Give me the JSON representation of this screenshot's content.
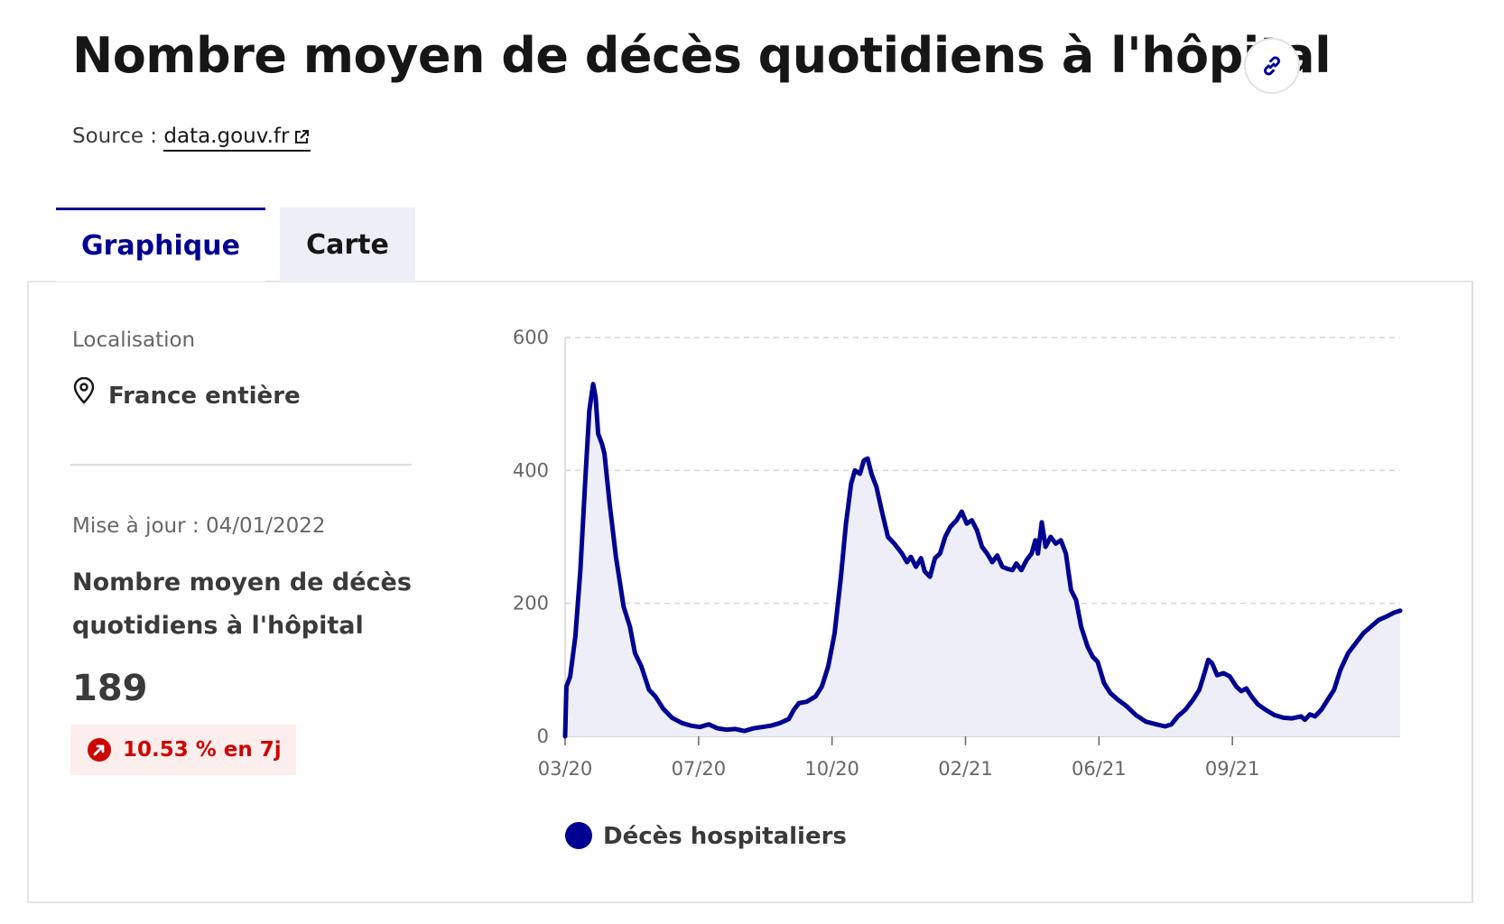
{
  "header": {
    "title": "Nombre moyen de décès quotidiens à l'hôpital",
    "link_icon": "link-icon",
    "source_label": "Source :",
    "source_link": "data.gouv.fr",
    "external_icon": "external-link-icon"
  },
  "tabs": [
    {
      "label": "Graphique",
      "active": true
    },
    {
      "label": "Carte",
      "active": false
    }
  ],
  "sidebar": {
    "location_label": "Localisation",
    "location_icon": "map-pin-icon",
    "location_value": "France entière",
    "update_text": "Mise à jour : 04/01/2022",
    "metric_title": "Nombre moyen de décès quotidiens à l'hôpital",
    "metric_value": "189",
    "trend_icon": "arrow-up-right-icon",
    "trend_text": "10.53 % en 7j"
  },
  "colors": {
    "accent": "#000091",
    "fill": "#eeeef8",
    "trend_bg": "#fdeeee",
    "trend_fg": "#ce0500"
  },
  "chart_data": {
    "type": "area",
    "x_start": "2020-03-18",
    "x_end": "2022-01-04",
    "ylim": [
      0,
      600
    ],
    "yticks": [
      "0",
      "200",
      "400",
      "600"
    ],
    "xticks": [
      {
        "label": "03/20",
        "date": "2020-03-18"
      },
      {
        "label": "07/20",
        "date": "2020-07-01"
      },
      {
        "label": "10/20",
        "date": "2020-10-14"
      },
      {
        "label": "02/21",
        "date": "2021-01-27"
      },
      {
        "label": "06/21",
        "date": "2021-05-12"
      },
      {
        "label": "09/21",
        "date": "2021-08-25"
      }
    ],
    "grid": true,
    "legend_position": "bottom",
    "series": [
      {
        "name": "Décès hospitaliers",
        "color": "#000091",
        "points": [
          [
            "2020-03-18",
            0
          ],
          [
            "2020-03-19",
            75
          ],
          [
            "2020-03-22",
            90
          ],
          [
            "2020-03-26",
            150
          ],
          [
            "2020-03-30",
            250
          ],
          [
            "2020-04-03",
            390
          ],
          [
            "2020-04-06",
            490
          ],
          [
            "2020-04-09",
            530
          ],
          [
            "2020-04-11",
            510
          ],
          [
            "2020-04-13",
            455
          ],
          [
            "2020-04-16",
            440
          ],
          [
            "2020-04-18",
            425
          ],
          [
            "2020-04-22",
            350
          ],
          [
            "2020-04-27",
            270
          ],
          [
            "2020-05-03",
            195
          ],
          [
            "2020-05-08",
            165
          ],
          [
            "2020-05-12",
            125
          ],
          [
            "2020-05-17",
            105
          ],
          [
            "2020-05-23",
            70
          ],
          [
            "2020-05-28",
            60
          ],
          [
            "2020-06-03",
            42
          ],
          [
            "2020-06-10",
            28
          ],
          [
            "2020-06-18",
            20
          ],
          [
            "2020-06-25",
            16
          ],
          [
            "2020-07-02",
            14
          ],
          [
            "2020-07-09",
            18
          ],
          [
            "2020-07-16",
            12
          ],
          [
            "2020-07-23",
            10
          ],
          [
            "2020-07-30",
            11
          ],
          [
            "2020-08-06",
            8
          ],
          [
            "2020-08-13",
            12
          ],
          [
            "2020-08-20",
            14
          ],
          [
            "2020-08-27",
            16
          ],
          [
            "2020-09-03",
            20
          ],
          [
            "2020-09-10",
            26
          ],
          [
            "2020-09-14",
            40
          ],
          [
            "2020-09-18",
            50
          ],
          [
            "2020-09-24",
            52
          ],
          [
            "2020-10-01",
            60
          ],
          [
            "2020-10-06",
            75
          ],
          [
            "2020-10-11",
            105
          ],
          [
            "2020-10-16",
            155
          ],
          [
            "2020-10-21",
            240
          ],
          [
            "2020-10-25",
            320
          ],
          [
            "2020-10-29",
            380
          ],
          [
            "2020-11-01",
            400
          ],
          [
            "2020-11-05",
            395
          ],
          [
            "2020-11-08",
            415
          ],
          [
            "2020-11-11",
            418
          ],
          [
            "2020-11-14",
            395
          ],
          [
            "2020-11-18",
            375
          ],
          [
            "2020-11-22",
            340
          ],
          [
            "2020-11-27",
            300
          ],
          [
            "2020-12-02",
            290
          ],
          [
            "2020-12-08",
            275
          ],
          [
            "2020-12-12",
            262
          ],
          [
            "2020-12-15",
            270
          ],
          [
            "2020-12-19",
            255
          ],
          [
            "2020-12-23",
            268
          ],
          [
            "2020-12-26",
            248
          ],
          [
            "2020-12-30",
            240
          ],
          [
            "2021-01-03",
            268
          ],
          [
            "2021-01-07",
            275
          ],
          [
            "2021-01-11",
            300
          ],
          [
            "2021-01-15",
            315
          ],
          [
            "2021-01-20",
            325
          ],
          [
            "2021-01-24",
            338
          ],
          [
            "2021-01-28",
            320
          ],
          [
            "2021-02-01",
            325
          ],
          [
            "2021-02-05",
            310
          ],
          [
            "2021-02-09",
            285
          ],
          [
            "2021-02-13",
            275
          ],
          [
            "2021-02-17",
            262
          ],
          [
            "2021-02-21",
            272
          ],
          [
            "2021-02-25",
            255
          ],
          [
            "2021-03-01",
            252
          ],
          [
            "2021-03-05",
            250
          ],
          [
            "2021-03-08",
            260
          ],
          [
            "2021-03-12",
            250
          ],
          [
            "2021-03-16",
            265
          ],
          [
            "2021-03-20",
            275
          ],
          [
            "2021-03-23",
            295
          ],
          [
            "2021-03-25",
            275
          ],
          [
            "2021-03-28",
            322
          ],
          [
            "2021-03-31",
            285
          ],
          [
            "2021-04-04",
            300
          ],
          [
            "2021-04-08",
            290
          ],
          [
            "2021-04-12",
            295
          ],
          [
            "2021-04-16",
            275
          ],
          [
            "2021-04-20",
            220
          ],
          [
            "2021-04-24",
            205
          ],
          [
            "2021-04-28",
            165
          ],
          [
            "2021-05-03",
            135
          ],
          [
            "2021-05-07",
            120
          ],
          [
            "2021-05-11",
            112
          ],
          [
            "2021-05-16",
            80
          ],
          [
            "2021-05-21",
            65
          ],
          [
            "2021-05-27",
            55
          ],
          [
            "2021-06-03",
            45
          ],
          [
            "2021-06-10",
            32
          ],
          [
            "2021-06-18",
            22
          ],
          [
            "2021-06-26",
            18
          ],
          [
            "2021-07-03",
            15
          ],
          [
            "2021-07-08",
            18
          ],
          [
            "2021-07-13",
            30
          ],
          [
            "2021-07-19",
            40
          ],
          [
            "2021-07-25",
            55
          ],
          [
            "2021-07-30",
            70
          ],
          [
            "2021-08-03",
            95
          ],
          [
            "2021-08-06",
            115
          ],
          [
            "2021-08-09",
            110
          ],
          [
            "2021-08-13",
            92
          ],
          [
            "2021-08-18",
            95
          ],
          [
            "2021-08-23",
            90
          ],
          [
            "2021-08-28",
            75
          ],
          [
            "2021-09-01",
            68
          ],
          [
            "2021-09-05",
            72
          ],
          [
            "2021-09-09",
            60
          ],
          [
            "2021-09-14",
            48
          ],
          [
            "2021-09-20",
            40
          ],
          [
            "2021-09-27",
            32
          ],
          [
            "2021-10-04",
            28
          ],
          [
            "2021-10-11",
            27
          ],
          [
            "2021-10-18",
            30
          ],
          [
            "2021-10-21",
            25
          ],
          [
            "2021-10-25",
            33
          ],
          [
            "2021-10-29",
            30
          ],
          [
            "2021-11-03",
            40
          ],
          [
            "2021-11-08",
            55
          ],
          [
            "2021-11-13",
            70
          ],
          [
            "2021-11-18",
            100
          ],
          [
            "2021-11-24",
            125
          ],
          [
            "2021-11-30",
            140
          ],
          [
            "2021-12-06",
            155
          ],
          [
            "2021-12-12",
            165
          ],
          [
            "2021-12-18",
            175
          ],
          [
            "2021-12-24",
            180
          ],
          [
            "2021-12-30",
            186
          ],
          [
            "2022-01-04",
            189
          ]
        ]
      }
    ]
  }
}
